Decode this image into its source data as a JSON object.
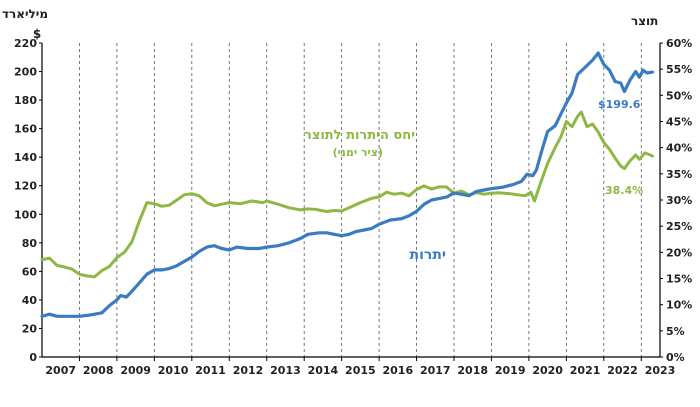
{
  "chart_data": {
    "type": "line",
    "left_axis_unit": "מיליארד",
    "left_axis_currency": "$",
    "right_axis_unit": "תוצר",
    "x_ticks": [
      "2007",
      "2008",
      "2009",
      "2010",
      "2011",
      "2012",
      "2013",
      "2014",
      "2015",
      "2016",
      "2017",
      "2018",
      "2019",
      "2020",
      "2021",
      "2022",
      "2023"
    ],
    "y_left_ticks": [
      "0",
      "20",
      "40",
      "60",
      "80",
      "100",
      "120",
      "140",
      "160",
      "180",
      "200",
      "220"
    ],
    "y_right_ticks": [
      "0%",
      "5%",
      "10%",
      "15%",
      "20%",
      "25%",
      "30%",
      "35%",
      "40%",
      "45%",
      "50%",
      "55%",
      "60%"
    ],
    "ylim_left": [
      0,
      220
    ],
    "ylim_right": [
      0,
      60
    ],
    "xlim": [
      2007.0,
      2023.5
    ],
    "grid": "vertical dashed lines at year boundaries",
    "colors": {
      "blue": "#3a7cc1",
      "green": "#8db843"
    },
    "annotations": {
      "series_reserves_label": "יתרות",
      "series_ratio_label": "יחס היתרות לתוצר",
      "series_ratio_sublabel": "(ציר ימני)",
      "end_value_reserves": "$199.6",
      "end_value_ratio": "38.4%"
    },
    "series": [
      {
        "axis": "left",
        "color": "#3a7cc1",
        "points": [
          [
            2007.0,
            28.5
          ],
          [
            2007.2,
            30
          ],
          [
            2007.4,
            28.5
          ],
          [
            2007.6,
            28.5
          ],
          [
            2007.8,
            28.5
          ],
          [
            2008.0,
            28.5
          ],
          [
            2008.3,
            29.5
          ],
          [
            2008.6,
            31
          ],
          [
            2008.8,
            36
          ],
          [
            2009.0,
            40
          ],
          [
            2009.1,
            43
          ],
          [
            2009.25,
            42
          ],
          [
            2009.4,
            46
          ],
          [
            2009.6,
            52
          ],
          [
            2009.8,
            58
          ],
          [
            2010.0,
            61
          ],
          [
            2010.2,
            61
          ],
          [
            2010.4,
            62
          ],
          [
            2010.6,
            64
          ],
          [
            2010.8,
            67
          ],
          [
            2011.0,
            70
          ],
          [
            2011.2,
            74
          ],
          [
            2011.4,
            77
          ],
          [
            2011.6,
            78
          ],
          [
            2011.8,
            76
          ],
          [
            2012.0,
            75
          ],
          [
            2012.2,
            77
          ],
          [
            2012.5,
            76
          ],
          [
            2012.8,
            76
          ],
          [
            2013.0,
            77
          ],
          [
            2013.3,
            78
          ],
          [
            2013.6,
            80
          ],
          [
            2013.9,
            83
          ],
          [
            2014.1,
            86
          ],
          [
            2014.4,
            87
          ],
          [
            2014.6,
            87
          ],
          [
            2014.8,
            86
          ],
          [
            2015.0,
            85
          ],
          [
            2015.2,
            86
          ],
          [
            2015.4,
            88
          ],
          [
            2015.6,
            89
          ],
          [
            2015.8,
            90
          ],
          [
            2016.0,
            93
          ],
          [
            2016.3,
            96
          ],
          [
            2016.6,
            97
          ],
          [
            2016.8,
            99
          ],
          [
            2017.0,
            102
          ],
          [
            2017.2,
            107
          ],
          [
            2017.4,
            110
          ],
          [
            2017.6,
            111
          ],
          [
            2017.8,
            112
          ],
          [
            2018.0,
            115
          ],
          [
            2018.2,
            114
          ],
          [
            2018.4,
            113
          ],
          [
            2018.6,
            116
          ],
          [
            2018.8,
            117
          ],
          [
            2019.0,
            118
          ],
          [
            2019.3,
            119
          ],
          [
            2019.6,
            121
          ],
          [
            2019.8,
            123
          ],
          [
            2019.95,
            128
          ],
          [
            2020.1,
            127
          ],
          [
            2020.2,
            131
          ],
          [
            2020.35,
            145
          ],
          [
            2020.5,
            158
          ],
          [
            2020.7,
            162
          ],
          [
            2020.85,
            170
          ],
          [
            2021.0,
            178
          ],
          [
            2021.15,
            185
          ],
          [
            2021.3,
            198
          ],
          [
            2021.5,
            203
          ],
          [
            2021.7,
            208
          ],
          [
            2021.85,
            213
          ],
          [
            2022.0,
            205
          ],
          [
            2022.15,
            201
          ],
          [
            2022.3,
            193
          ],
          [
            2022.45,
            192
          ],
          [
            2022.55,
            186
          ],
          [
            2022.7,
            194
          ],
          [
            2022.85,
            200
          ],
          [
            2022.95,
            196
          ],
          [
            2023.05,
            201
          ],
          [
            2023.15,
            199
          ],
          [
            2023.3,
            199.6
          ]
        ]
      },
      {
        "axis": "right",
        "color": "#8db843",
        "points": [
          [
            2007.0,
            18.6
          ],
          [
            2007.2,
            18.9
          ],
          [
            2007.4,
            17.5
          ],
          [
            2007.6,
            17.2
          ],
          [
            2007.8,
            16.8
          ],
          [
            2008.0,
            15.8
          ],
          [
            2008.2,
            15.5
          ],
          [
            2008.4,
            15.3
          ],
          [
            2008.6,
            16.5
          ],
          [
            2008.8,
            17.3
          ],
          [
            2009.0,
            19
          ],
          [
            2009.2,
            20
          ],
          [
            2009.4,
            22
          ],
          [
            2009.6,
            26
          ],
          [
            2009.8,
            29.5
          ],
          [
            2010.0,
            29.3
          ],
          [
            2010.2,
            28.8
          ],
          [
            2010.4,
            29
          ],
          [
            2010.6,
            30
          ],
          [
            2010.8,
            31
          ],
          [
            2011.0,
            31.2
          ],
          [
            2011.2,
            30.8
          ],
          [
            2011.4,
            29.5
          ],
          [
            2011.6,
            28.9
          ],
          [
            2011.8,
            29.2
          ],
          [
            2012.0,
            29.5
          ],
          [
            2012.3,
            29.3
          ],
          [
            2012.6,
            29.8
          ],
          [
            2012.9,
            29.5
          ],
          [
            2013.0,
            29.8
          ],
          [
            2013.3,
            29.2
          ],
          [
            2013.6,
            28.5
          ],
          [
            2013.9,
            28.1
          ],
          [
            2014.1,
            28.3
          ],
          [
            2014.3,
            28.2
          ],
          [
            2014.6,
            27.8
          ],
          [
            2014.8,
            28
          ],
          [
            2015.0,
            27.9
          ],
          [
            2015.2,
            28.5
          ],
          [
            2015.5,
            29.5
          ],
          [
            2015.8,
            30.3
          ],
          [
            2016.0,
            30.6
          ],
          [
            2016.2,
            31.5
          ],
          [
            2016.4,
            31.1
          ],
          [
            2016.6,
            31.3
          ],
          [
            2016.8,
            30.8
          ],
          [
            2017.0,
            32
          ],
          [
            2017.2,
            32.7
          ],
          [
            2017.4,
            32.1
          ],
          [
            2017.6,
            32.5
          ],
          [
            2017.8,
            32.5
          ],
          [
            2018.0,
            31.3
          ],
          [
            2018.2,
            31.7
          ],
          [
            2018.4,
            31
          ],
          [
            2018.6,
            31.4
          ],
          [
            2018.8,
            31.1
          ],
          [
            2019.0,
            31.3
          ],
          [
            2019.2,
            31.4
          ],
          [
            2019.5,
            31.2
          ],
          [
            2019.7,
            31
          ],
          [
            2019.9,
            30.8
          ],
          [
            2020.05,
            31.5
          ],
          [
            2020.15,
            29.8
          ],
          [
            2020.3,
            33
          ],
          [
            2020.5,
            37
          ],
          [
            2020.7,
            40
          ],
          [
            2020.85,
            42
          ],
          [
            2021.0,
            45
          ],
          [
            2021.15,
            44
          ],
          [
            2021.3,
            46
          ],
          [
            2021.4,
            46.8
          ],
          [
            2021.55,
            44
          ],
          [
            2021.7,
            44.5
          ],
          [
            2021.85,
            43
          ],
          [
            2022.0,
            41
          ],
          [
            2022.15,
            39.7
          ],
          [
            2022.3,
            38
          ],
          [
            2022.45,
            36.5
          ],
          [
            2022.55,
            36
          ],
          [
            2022.7,
            37.5
          ],
          [
            2022.85,
            38.6
          ],
          [
            2022.95,
            37.8
          ],
          [
            2023.1,
            39
          ],
          [
            2023.3,
            38.4
          ]
        ]
      }
    ]
  }
}
